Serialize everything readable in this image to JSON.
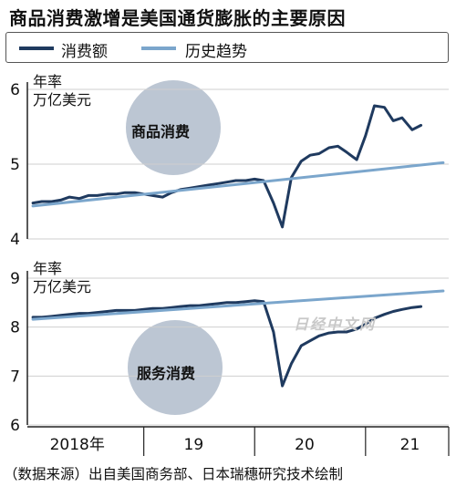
{
  "title": "商品消费激增是美国通货膨胀的主要原因",
  "legend": {
    "actual_label": "消费额",
    "trend_label": "历史趋势",
    "actual_color": "#1f3a5f",
    "trend_color": "#7ba6cc"
  },
  "watermark": "日经中文网",
  "source": "（数据来源）出自美国商务部、日本瑞穗研究技术绘制",
  "chart_data": [
    {
      "type": "line",
      "title": "商品消费",
      "unit_line1": "年率",
      "unit_line2": "万亿美元",
      "ylim": [
        4,
        6
      ],
      "yticks": [
        4,
        5,
        6
      ],
      "xticks": [
        {
          "t": 2018.4,
          "label": "2018年"
        },
        {
          "t": 2019.45,
          "label": "19"
        },
        {
          "t": 2020.45,
          "label": "20"
        },
        {
          "t": 2021.4,
          "label": "21"
        }
      ],
      "xlim": [
        2017.95,
        2021.75
      ],
      "series": [
        {
          "name": "消费额",
          "x": [
            2018.0,
            2018.08,
            2018.17,
            2018.25,
            2018.33,
            2018.42,
            2018.5,
            2018.58,
            2018.67,
            2018.75,
            2018.83,
            2018.92,
            2019.0,
            2019.08,
            2019.17,
            2019.25,
            2019.33,
            2019.42,
            2019.5,
            2019.58,
            2019.67,
            2019.75,
            2019.83,
            2019.92,
            2020.0,
            2020.08,
            2020.17,
            2020.25,
            2020.33,
            2020.42,
            2020.5,
            2020.58,
            2020.67,
            2020.75,
            2020.83,
            2020.92,
            2021.0,
            2021.08,
            2021.17,
            2021.25,
            2021.33,
            2021.42,
            2021.5
          ],
          "values": [
            4.48,
            4.5,
            4.5,
            4.52,
            4.56,
            4.54,
            4.58,
            4.58,
            4.6,
            4.6,
            4.62,
            4.62,
            4.6,
            4.58,
            4.56,
            4.62,
            4.66,
            4.68,
            4.7,
            4.72,
            4.74,
            4.76,
            4.78,
            4.78,
            4.8,
            4.78,
            4.48,
            4.16,
            4.82,
            5.04,
            5.12,
            5.14,
            5.22,
            5.24,
            5.16,
            5.06,
            5.38,
            5.78,
            5.76,
            5.58,
            5.62,
            5.46,
            5.52
          ]
        },
        {
          "name": "历史趋势",
          "x": [
            2018.0,
            2021.7
          ],
          "values": [
            4.44,
            5.02
          ]
        }
      ]
    },
    {
      "type": "line",
      "title": "服务消费",
      "unit_line1": "年率",
      "unit_line2": "万亿美元",
      "ylim": [
        6,
        9
      ],
      "yticks": [
        6,
        7,
        8,
        9
      ],
      "xticks": [
        {
          "t": 2018.4,
          "label": "2018年"
        },
        {
          "t": 2019.45,
          "label": "19"
        },
        {
          "t": 2020.45,
          "label": "20"
        },
        {
          "t": 2021.4,
          "label": "21"
        }
      ],
      "xlim": [
        2017.95,
        2021.75
      ],
      "series": [
        {
          "name": "消费额",
          "x": [
            2018.0,
            2018.08,
            2018.17,
            2018.25,
            2018.33,
            2018.42,
            2018.5,
            2018.58,
            2018.67,
            2018.75,
            2018.83,
            2018.92,
            2019.0,
            2019.08,
            2019.17,
            2019.25,
            2019.33,
            2019.42,
            2019.5,
            2019.58,
            2019.67,
            2019.75,
            2019.83,
            2019.92,
            2020.0,
            2020.08,
            2020.17,
            2020.25,
            2020.33,
            2020.42,
            2020.5,
            2020.58,
            2020.67,
            2020.75,
            2020.83,
            2020.92,
            2021.0,
            2021.08,
            2021.17,
            2021.25,
            2021.33,
            2021.42,
            2021.5
          ],
          "values": [
            8.2,
            8.2,
            8.22,
            8.24,
            8.26,
            8.28,
            8.28,
            8.3,
            8.32,
            8.34,
            8.34,
            8.34,
            8.36,
            8.38,
            8.38,
            8.4,
            8.42,
            8.44,
            8.44,
            8.46,
            8.48,
            8.5,
            8.5,
            8.52,
            8.54,
            8.52,
            7.9,
            6.8,
            7.25,
            7.62,
            7.72,
            7.82,
            7.88,
            7.9,
            7.9,
            7.96,
            8.06,
            8.18,
            8.26,
            8.32,
            8.36,
            8.4,
            8.42
          ]
        },
        {
          "name": "历史趋势",
          "x": [
            2018.0,
            2021.7
          ],
          "values": [
            8.16,
            8.74
          ]
        }
      ]
    }
  ]
}
